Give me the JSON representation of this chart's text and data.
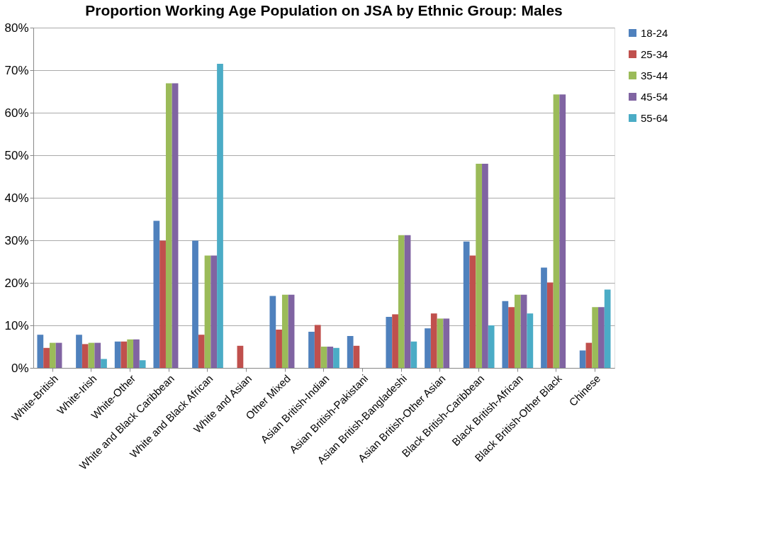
{
  "chart_data": {
    "type": "bar",
    "title": "Proportion Working Age Population on JSA by Ethnic Group: Males",
    "categories": [
      "White-British",
      "White-Irish",
      "White-Other",
      "White and Black Caribbean",
      "White and Black African",
      "White and Asian",
      "Other Mixed",
      "Asian British-Indian",
      "Asian British-Pakistani",
      "Asian British-Bangladeshi",
      "Asian British-Other Asian",
      "Black British-Caribbean",
      "Black British-African",
      "Black British-Other Black",
      "Chinese"
    ],
    "series": [
      {
        "name": "18-24",
        "color": "#4f81bd",
        "values": [
          7.8,
          7.8,
          6.2,
          34.6,
          29.9,
          null,
          16.9,
          8.5,
          7.5,
          12.0,
          9.3,
          29.7,
          15.7,
          23.6,
          4.1
        ]
      },
      {
        "name": "25-34",
        "color": "#c0504d",
        "values": [
          4.7,
          5.6,
          6.2,
          29.9,
          7.8,
          5.2,
          9.0,
          10.1,
          5.2,
          12.6,
          12.8,
          26.4,
          14.3,
          20.1,
          5.9
        ]
      },
      {
        "name": "35-44",
        "color": "#9bbb59",
        "values": [
          5.9,
          5.9,
          6.7,
          66.9,
          26.4,
          null,
          17.2,
          5.0,
          null,
          31.2,
          11.6,
          48.0,
          17.2,
          64.3,
          14.3
        ]
      },
      {
        "name": "45-54",
        "color": "#8064a2",
        "values": [
          5.9,
          5.9,
          6.7,
          66.9,
          26.4,
          null,
          17.2,
          5.0,
          null,
          31.2,
          11.6,
          48.0,
          17.2,
          64.3,
          14.3
        ]
      },
      {
        "name": "55-64",
        "color": "#4bacc6",
        "values": [
          null,
          2.1,
          1.8,
          null,
          71.5,
          null,
          null,
          4.7,
          null,
          6.2,
          null,
          10.0,
          12.8,
          null,
          18.4
        ]
      }
    ],
    "ylim": [
      0,
      80
    ],
    "yticks": [
      {
        "value": 0,
        "label": "0%"
      },
      {
        "value": 10,
        "label": "10%"
      },
      {
        "value": 20,
        "label": "20%"
      },
      {
        "value": 30,
        "label": "30%"
      },
      {
        "value": 40,
        "label": "40%"
      },
      {
        "value": 50,
        "label": "50%"
      },
      {
        "value": 60,
        "label": "60%"
      },
      {
        "value": 70,
        "label": "70%"
      },
      {
        "value": 80,
        "label": "80%"
      }
    ],
    "grid": "y",
    "legend": "right"
  }
}
